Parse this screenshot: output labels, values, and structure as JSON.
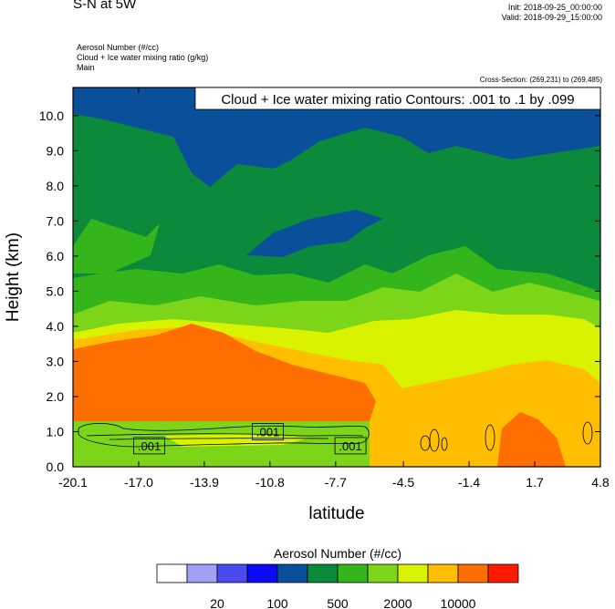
{
  "header": {
    "title": "S-N at 5W",
    "init": "Init: 2018-09-25_00:00:00",
    "valid": "Valid: 2018-09-29_15:00:00",
    "fields": [
      "Aerosol Number   (#/cc)",
      "Cloud + Ice water mixing ratio   (g/kg)",
      "Main"
    ],
    "cross_section": "Cross-Section: (269,231) to (269,485)",
    "contour_label": "Cloud + Ice water mixing ratio Contours: .001 to .1 by .099"
  },
  "chart_data": {
    "type": "heatmap",
    "xlabel": "latitude",
    "ylabel": "Height (km)",
    "x_ticks": [
      "-20.1",
      "-17.0",
      "-13.9",
      "-10.8",
      "-7.7",
      "-4.5",
      "-1.4",
      "1.7",
      "4.8"
    ],
    "y_ticks": [
      "0.0",
      "1.0",
      "2.0",
      "3.0",
      "4.0",
      "5.0",
      "6.0",
      "7.0",
      "8.0",
      "9.0",
      "10.0"
    ],
    "xlim": [
      -20.1,
      4.8
    ],
    "ylim": [
      0,
      10.8
    ],
    "contour_labels": [
      {
        "text": ".001",
        "x": -16.5,
        "y": 0.6
      },
      {
        "text": ".001",
        "x": -10.9,
        "y": 1.0
      },
      {
        "text": ".001",
        "x": -7.0,
        "y": 0.6
      }
    ],
    "colorbar": {
      "title": "Aerosol Number  (#/cc)",
      "colors": [
        "#ffffff",
        "#a0a0f7",
        "#4a4af0",
        "#0a0af5",
        "#0a4f9a",
        "#0a8a3a",
        "#35b51c",
        "#7dd51a",
        "#d8f200",
        "#ffbf00",
        "#ff6e00",
        "#ff1a00"
      ],
      "labels": [
        "20",
        "100",
        "500",
        "2000",
        "10000"
      ]
    },
    "colors": {
      "dark_blue": "#0a4f9a",
      "green_dark": "#0a8a3a",
      "green": "#35b51c",
      "lime": "#7dd51a",
      "yellow": "#d8f200",
      "orange": "#ffbf00",
      "dark_orange": "#ff6e00",
      "red": "#ff1a00"
    }
  }
}
